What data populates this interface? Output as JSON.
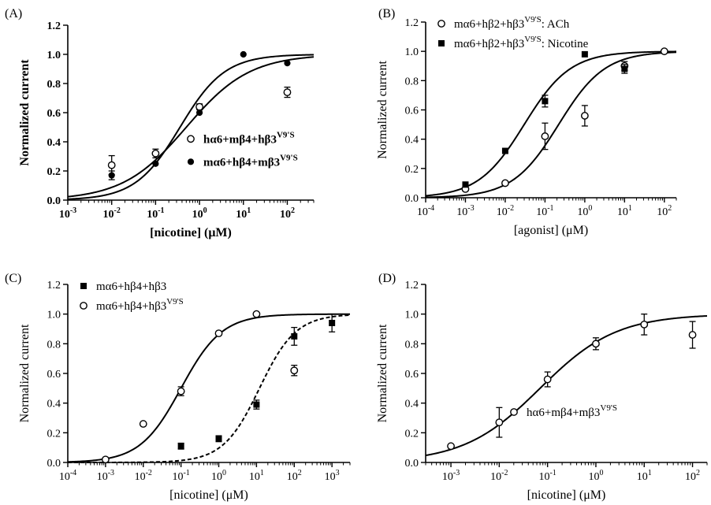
{
  "chart_data": [
    {
      "type": "scatter",
      "panel_label": "(A)",
      "xlabel": "[nicotine] (μM)",
      "ylabel": "Normalized current",
      "bold_labels": true,
      "xscale": "log",
      "xlim": [
        0.001,
        400
      ],
      "ylim": [
        0,
        1.2
      ],
      "xticks": [
        0.001,
        0.01,
        0.1,
        1,
        10,
        100
      ],
      "xtick_labels": [
        [
          "10",
          "-3"
        ],
        [
          "10",
          "-2"
        ],
        [
          "10",
          "-1"
        ],
        [
          "10",
          "0"
        ],
        [
          "10",
          "1"
        ],
        [
          "10",
          "2"
        ]
      ],
      "yticks": [
        0,
        0.2,
        0.4,
        0.6,
        0.8,
        1.0,
        1.2
      ],
      "ytick_labels": [
        "0.0",
        "0.2",
        "0.4",
        "0.6",
        "0.8",
        "1.0",
        "1.2"
      ],
      "legend_position": "middle-right",
      "series": [
        {
          "name": "hα6+mβ4+hβ3",
          "name_sup": "V9'S",
          "marker": "open-circle",
          "x": [
            0.01,
            0.1,
            1,
            100
          ],
          "y": [
            0.24,
            0.32,
            0.64,
            0.74
          ],
          "err": [
            0.065,
            0.03,
            0.02,
            0.035
          ],
          "fit": {
            "ec50": 0.5,
            "hill": 0.6,
            "style": "solid"
          }
        },
        {
          "name": "mα6+hβ4+mβ3",
          "name_sup": "V9'S",
          "marker": "filled-circle",
          "x": [
            0.01,
            0.1,
            1,
            10,
            100
          ],
          "y": [
            0.17,
            0.25,
            0.6,
            1.0,
            0.94
          ],
          "err": [
            0.03,
            0,
            0,
            0,
            0
          ],
          "fit": {
            "ec50": 0.36,
            "hill": 0.85,
            "style": "solid"
          }
        }
      ]
    },
    {
      "type": "scatter",
      "panel_label": "(B)",
      "xlabel": "[agonist] (μM)",
      "ylabel": "Normalized current",
      "bold_labels": false,
      "xscale": "log",
      "xlim": [
        0.0001,
        200
      ],
      "ylim": [
        0,
        1.2
      ],
      "xticks": [
        0.0001,
        0.001,
        0.01,
        0.1,
        1,
        10,
        100
      ],
      "xtick_labels": [
        [
          "10",
          "-4"
        ],
        [
          "10",
          "-3"
        ],
        [
          "10",
          "-2"
        ],
        [
          "10",
          "-1"
        ],
        [
          "10",
          "0"
        ],
        [
          "10",
          "1"
        ],
        [
          "10",
          "2"
        ]
      ],
      "yticks": [
        0,
        0.2,
        0.4,
        0.6,
        0.8,
        1.0,
        1.2
      ],
      "ytick_labels": [
        "0.0",
        "0.2",
        "0.4",
        "0.6",
        "0.8",
        "1.0",
        "1.2"
      ],
      "legend_position": "top-left",
      "series": [
        {
          "name": "mα6+hβ2+hβ3",
          "name_sup": "V9'S",
          "name_suffix": ": ACh",
          "marker": "open-circle",
          "x": [
            0.001,
            0.01,
            0.1,
            1,
            10,
            100
          ],
          "y": [
            0.06,
            0.1,
            0.42,
            0.56,
            0.9,
            1.0
          ],
          "err": [
            0,
            0,
            0.09,
            0.07,
            0.03,
            0
          ],
          "fit": {
            "ec50": 0.22,
            "hill": 0.75,
            "style": "solid"
          }
        },
        {
          "name": "mα6+hβ2+hβ3",
          "name_sup": "V9'S",
          "name_suffix": ": Nicotine",
          "marker": "filled-square",
          "x": [
            0.001,
            0.01,
            0.1,
            1,
            10
          ],
          "y": [
            0.09,
            0.32,
            0.66,
            0.98,
            0.88
          ],
          "err": [
            0,
            0,
            0.04,
            0,
            0.03
          ],
          "fit": {
            "ec50": 0.03,
            "hill": 0.75,
            "style": "solid"
          }
        }
      ]
    },
    {
      "type": "scatter",
      "panel_label": "(C)",
      "xlabel": "[nicotine] (μM)",
      "ylabel": "Normalized current",
      "bold_labels": false,
      "xscale": "log",
      "xlim": [
        0.0001,
        3000
      ],
      "ylim": [
        0,
        1.2
      ],
      "xticks": [
        0.0001,
        0.001,
        0.01,
        0.1,
        1,
        10,
        100,
        1000
      ],
      "xtick_labels": [
        [
          "10",
          "-4"
        ],
        [
          "10",
          "-3"
        ],
        [
          "10",
          "-2"
        ],
        [
          "10",
          "-1"
        ],
        [
          "10",
          "0"
        ],
        [
          "10",
          "1"
        ],
        [
          "10",
          "2"
        ],
        [
          "10",
          "3"
        ]
      ],
      "yticks": [
        0,
        0.2,
        0.4,
        0.6,
        0.8,
        1.0,
        1.2
      ],
      "ytick_labels": [
        "0.0",
        "0.2",
        "0.4",
        "0.6",
        "0.8",
        "1.0",
        "1.2"
      ],
      "legend_position": "top-left",
      "series": [
        {
          "name": "mα6+hβ4+hβ3",
          "name_sup": "",
          "marker": "filled-square",
          "x": [
            0.1,
            1,
            10,
            100,
            1000
          ],
          "y": [
            0.11,
            0.16,
            0.39,
            0.85,
            0.94
          ],
          "err": [
            0.02,
            0.02,
            0.03,
            0.06,
            0.06
          ],
          "fit": {
            "ec50": 12,
            "hill": 0.9,
            "style": "dashed"
          }
        },
        {
          "name": "mα6+hβ4+hβ3",
          "name_sup": "V9'S",
          "marker": "open-circle",
          "x": [
            0.001,
            0.01,
            0.1,
            1,
            10,
            100
          ],
          "y": [
            0.02,
            0.26,
            0.48,
            0.87,
            1.0,
            0.62
          ],
          "err": [
            0,
            0,
            0.03,
            0,
            0,
            0.035
          ],
          "fit": {
            "ec50": 0.1,
            "hill": 0.8,
            "style": "solid"
          }
        }
      ]
    },
    {
      "type": "scatter",
      "panel_label": "(D)",
      "xlabel": "[nicotine] (μM)",
      "ylabel": "Normalized current",
      "bold_labels": false,
      "xscale": "log",
      "xlim": [
        0.0003,
        200
      ],
      "ylim": [
        0,
        1.2
      ],
      "xticks": [
        0.001,
        0.01,
        0.1,
        1,
        10,
        100
      ],
      "xtick_labels": [
        [
          "10",
          "-3"
        ],
        [
          "10",
          "-2"
        ],
        [
          "10",
          "-1"
        ],
        [
          "10",
          "0"
        ],
        [
          "10",
          "1"
        ],
        [
          "10",
          "2"
        ]
      ],
      "yticks": [
        0,
        0.2,
        0.4,
        0.6,
        0.8,
        1.0,
        1.2
      ],
      "ytick_labels": [
        "0.0",
        "0.2",
        "0.4",
        "0.6",
        "0.8",
        "1.0",
        "1.2"
      ],
      "legend_position": "middle-right",
      "series": [
        {
          "name": "hα6+mβ4+mβ3",
          "name_sup": "V9'S",
          "marker": "open-circle",
          "x": [
            0.001,
            0.01,
            0.1,
            1,
            10,
            100
          ],
          "y": [
            0.11,
            0.27,
            0.56,
            0.8,
            0.93,
            0.86
          ],
          "err": [
            0,
            0.1,
            0.05,
            0.04,
            0.07,
            0.09
          ],
          "fit": {
            "ec50": 0.07,
            "hill": 0.55,
            "style": "solid"
          }
        }
      ]
    }
  ]
}
